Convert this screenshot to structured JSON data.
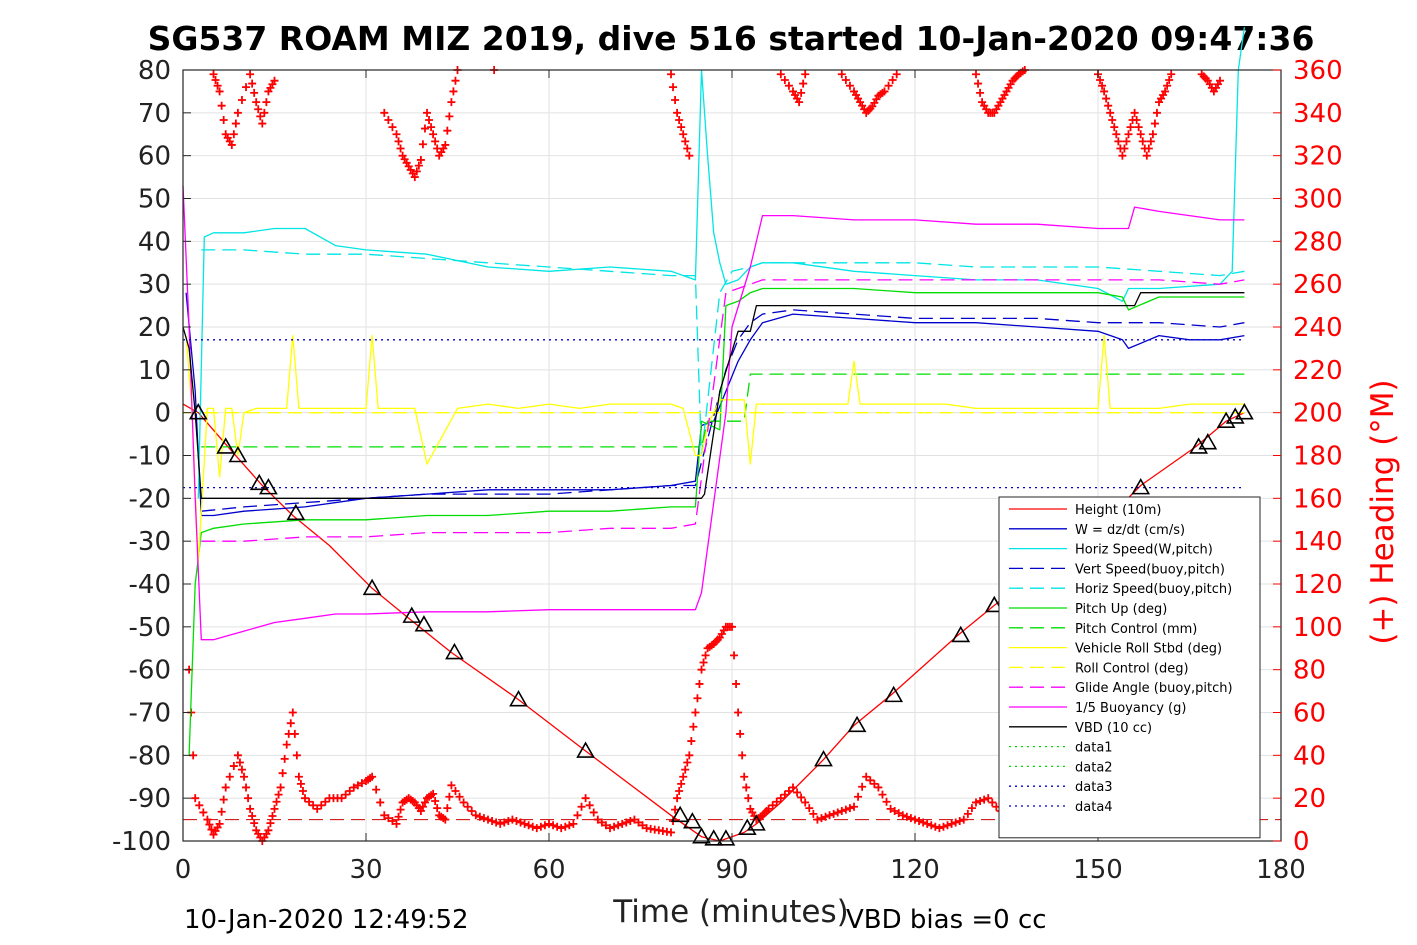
{
  "page": {
    "title": "SG537 ROAM MIZ 2019, dive 516 started 10-Jan-2020 09:47:36",
    "footer_left": "10-Jan-2020 12:49:52",
    "footer_right": "VBD bias =0 cc"
  },
  "chart_data": {
    "type": "line",
    "xlabel": "Time (minutes)",
    "ylabel_right": "(+) Heading (°M)",
    "xlim": [
      0,
      180
    ],
    "ylim": [
      -100,
      80
    ],
    "y2lim": [
      0,
      360
    ],
    "xticks": [
      0,
      30,
      60,
      90,
      120,
      150,
      180
    ],
    "yticks": [
      -100,
      -90,
      -80,
      -70,
      -60,
      -50,
      -40,
      -30,
      -20,
      -10,
      0,
      10,
      20,
      30,
      40,
      50,
      60,
      70,
      80
    ],
    "y2ticks": [
      0,
      20,
      40,
      60,
      80,
      100,
      120,
      140,
      160,
      180,
      200,
      220,
      240,
      260,
      280,
      300,
      320,
      340,
      360
    ],
    "grid": true,
    "legend_position": "bottom-right",
    "series": [
      {
        "name": "Height (10m)",
        "color": "#ff0000",
        "style": "solid",
        "x": [
          0,
          2.5,
          8,
          13,
          18,
          24,
          31,
          37,
          44,
          55,
          66,
          80,
          85,
          88,
          92,
          94,
          98,
          105,
          110,
          116,
          127,
          133,
          141,
          150,
          157,
          166,
          171,
          174
        ],
        "y": [
          2,
          0,
          -9,
          -17,
          -24,
          -31,
          -41,
          -48,
          -56,
          -67,
          -79,
          -94,
          -99,
          -100,
          -98,
          -96,
          -91,
          -81,
          -73,
          -66,
          -52,
          -45,
          -36,
          -27,
          -17,
          -8,
          -2,
          0
        ]
      },
      {
        "name": "W = dz/dt (cm/s)",
        "color": "#0000cc",
        "style": "solid",
        "x": [
          0.5,
          2,
          3,
          5,
          10,
          20,
          30,
          40,
          50,
          60,
          70,
          80,
          84,
          85,
          87,
          89,
          91,
          93,
          95,
          100,
          110,
          120,
          130,
          140,
          150,
          154,
          155,
          160,
          165,
          170,
          174
        ],
        "y": [
          28,
          5,
          -24,
          -24,
          -23,
          -22,
          -20,
          -19,
          -18,
          -18,
          -18,
          -17,
          -16,
          -3,
          -2,
          5,
          12,
          17,
          21,
          23,
          22,
          21,
          21,
          20,
          19,
          17,
          15,
          18,
          17,
          17,
          18
        ]
      },
      {
        "name": "Horiz Speed(W,pitch)",
        "color": "#00e5e5",
        "style": "solid",
        "x": [
          2.5,
          3.5,
          5,
          10,
          15,
          20,
          25,
          30,
          40,
          50,
          60,
          70,
          80,
          84,
          85,
          86,
          87,
          88,
          89,
          91,
          93,
          95,
          100,
          110,
          120,
          130,
          140,
          150,
          154,
          155,
          160,
          170,
          172,
          173,
          174
        ],
        "y": [
          -20,
          41,
          42,
          42,
          43,
          43,
          39,
          38,
          37,
          34,
          33,
          34,
          33,
          31,
          80,
          60,
          42,
          35,
          30,
          31,
          34,
          35,
          35,
          33,
          32,
          31,
          31,
          29,
          26,
          29,
          29,
          30,
          33,
          80,
          90
        ]
      },
      {
        "name": "Vert Speed(buoy,pitch)",
        "color": "#0000cc",
        "style": "dashed",
        "x": [
          3,
          10,
          20,
          30,
          40,
          50,
          60,
          70,
          80,
          84,
          89,
          91,
          93,
          95,
          100,
          110,
          120,
          130,
          140,
          150,
          160,
          170,
          174
        ],
        "y": [
          -23,
          -22,
          -21,
          -20,
          -19,
          -19,
          -19,
          -18,
          -17,
          -17,
          10,
          17,
          21,
          23,
          24,
          23,
          22,
          22,
          22,
          21,
          21,
          20,
          21
        ]
      },
      {
        "name": "Horiz Speed(buoy,pitch)",
        "color": "#00e5e5",
        "style": "dashed",
        "x": [
          3,
          5,
          10,
          20,
          30,
          40,
          50,
          60,
          70,
          80,
          84,
          85,
          88,
          90,
          93,
          95,
          100,
          110,
          120,
          130,
          140,
          150,
          160,
          170,
          174
        ],
        "y": [
          38,
          38,
          38,
          37,
          37,
          36,
          35,
          34,
          33,
          32,
          32,
          -10,
          28,
          33,
          34,
          35,
          35,
          35,
          35,
          34,
          34,
          34,
          33,
          32,
          33
        ]
      },
      {
        "name": "Pitch Up (deg)",
        "color": "#00dd00",
        "style": "solid",
        "x": [
          1,
          2,
          3,
          5,
          10,
          20,
          30,
          40,
          50,
          60,
          70,
          80,
          84,
          85,
          88,
          89,
          91,
          93,
          95,
          100,
          110,
          120,
          130,
          140,
          150,
          154,
          155,
          160,
          170,
          174
        ],
        "y": [
          -80,
          -40,
          -28,
          -27,
          -26,
          -25,
          -25,
          -24,
          -24,
          -23,
          -23,
          -22,
          -22,
          -2,
          -4,
          25,
          26,
          28,
          29,
          29,
          29,
          28,
          28,
          28,
          28,
          27,
          24,
          27,
          27,
          27
        ]
      },
      {
        "name": "Pitch Control (mm)",
        "color": "#00dd00",
        "style": "dashed",
        "x": [
          3,
          85,
          86,
          92,
          93,
          174
        ],
        "y": [
          -8,
          -8,
          -2,
          -2,
          9,
          9
        ]
      },
      {
        "name": "Vehicle Roll Stbd (deg)",
        "color": "#ffff00",
        "style": "solid",
        "x": [
          0.5,
          1.5,
          2.5,
          4,
          5,
          6,
          7,
          8,
          9,
          10,
          12,
          15,
          17,
          18,
          19,
          20,
          25,
          30,
          31,
          32,
          35,
          38,
          40,
          45,
          50,
          55,
          60,
          65,
          70,
          75,
          80,
          82,
          84,
          85,
          86,
          88,
          90,
          92,
          93,
          94,
          95,
          100,
          105,
          109,
          110,
          111,
          115,
          120,
          125,
          130,
          135,
          140,
          145,
          150,
          151,
          152,
          155,
          160,
          165,
          170,
          174
        ],
        "y": [
          18,
          0,
          -35,
          1,
          1,
          -15,
          1,
          1,
          -10,
          0,
          1,
          1,
          1,
          18,
          1,
          1,
          1,
          1,
          18,
          1,
          1,
          1,
          -12,
          1,
          2,
          1,
          2,
          1,
          2,
          2,
          2,
          1,
          -10,
          -10,
          -3,
          3,
          3,
          3,
          -12,
          2,
          2,
          2,
          2,
          2,
          12,
          2,
          2,
          2,
          2,
          1,
          1,
          1,
          1,
          1,
          18,
          1,
          1,
          1,
          2,
          2,
          2
        ]
      },
      {
        "name": "Roll Control (deg)",
        "color": "#ffff00",
        "style": "dashed",
        "x": [
          0,
          174
        ],
        "y": [
          0,
          0
        ]
      },
      {
        "name": "Glide Angle (buoy,pitch)",
        "color": "#ff00ff",
        "style": "dashed",
        "x": [
          3,
          10,
          20,
          30,
          40,
          50,
          60,
          70,
          80,
          84,
          89,
          91,
          93,
          95,
          100,
          110,
          120,
          130,
          140,
          150,
          160,
          170,
          174
        ],
        "y": [
          -30,
          -30,
          -29,
          -29,
          -28,
          -28,
          -28,
          -27,
          -27,
          -26,
          28,
          29,
          30,
          31,
          31,
          31,
          31,
          31,
          31,
          31,
          31,
          30,
          31
        ]
      },
      {
        "name": "1/5 Buoyancy (g)",
        "color": "#ff00ff",
        "style": "solid",
        "x": [
          0,
          1,
          2,
          3,
          5,
          10,
          15,
          20,
          25,
          30,
          40,
          50,
          60,
          70,
          80,
          84,
          85,
          89,
          90,
          93,
          95,
          100,
          110,
          120,
          130,
          140,
          150,
          155,
          156,
          160,
          170,
          174
        ],
        "y": [
          53,
          20,
          -20,
          -53,
          -53,
          -51,
          -49,
          -48,
          -47,
          -47,
          -46.5,
          -46.5,
          -46,
          -46,
          -46,
          -46,
          -42,
          0,
          20,
          34,
          46,
          46,
          45,
          45,
          44,
          44,
          43,
          43,
          48,
          47,
          45,
          45
        ]
      },
      {
        "name": "VBD (10 cc)",
        "color": "#000000",
        "style": "solid",
        "x": [
          0,
          1,
          2,
          3,
          85,
          85.5,
          88,
          91,
          91.5,
          93,
          94,
          95,
          155,
          156,
          157,
          174
        ],
        "y": [
          20,
          15,
          0,
          -20,
          -20,
          -19,
          5,
          19,
          19,
          19,
          25,
          25,
          25,
          25,
          28,
          28
        ]
      },
      {
        "name": "data1",
        "color": "#00dd00",
        "style": "dotted",
        "x": [],
        "y": []
      },
      {
        "name": "data2",
        "color": "#00dd00",
        "style": "dotted",
        "x": [],
        "y": []
      },
      {
        "name": "data3",
        "color": "#0000cc",
        "style": "dotted",
        "x": [
          0,
          174
        ],
        "y": [
          17,
          17
        ]
      },
      {
        "name": "data4",
        "color": "#0000cc",
        "style": "dotted",
        "x": [
          0,
          174
        ],
        "y": [
          -17.5,
          -17.5
        ]
      }
    ],
    "reference_lines": [
      {
        "color": "#cc0000",
        "style": "dashed",
        "y": -95
      }
    ],
    "heading_series": {
      "name": "Heading",
      "axis": "right",
      "color": "#ff0000",
      "marker": "+",
      "x": [
        1,
        2,
        4,
        5,
        6,
        7,
        9,
        10,
        11,
        12,
        13,
        14,
        15,
        16,
        17,
        18,
        19,
        20,
        22,
        24,
        26,
        28,
        30,
        31,
        33,
        35,
        36,
        37,
        38,
        39,
        40,
        41,
        42,
        43,
        44,
        46,
        48,
        50,
        52,
        54,
        56,
        58,
        60,
        62,
        64,
        66,
        68,
        70,
        72,
        74,
        76,
        78,
        80,
        81,
        82,
        83,
        84,
        85,
        86,
        87,
        88,
        89,
        90,
        91,
        92,
        93,
        94,
        95,
        96,
        98,
        100,
        102,
        104,
        106,
        108,
        110,
        112,
        114,
        116,
        118,
        120,
        122,
        124,
        126,
        128,
        130,
        132,
        134,
        136,
        138,
        140,
        142,
        144,
        146,
        148,
        150,
        152,
        154,
        156,
        158,
        160,
        162,
        164,
        166,
        168,
        170,
        172
      ],
      "y": [
        80,
        20,
        10,
        3,
        8,
        25,
        40,
        30,
        15,
        5,
        0,
        5,
        15,
        25,
        45,
        60,
        30,
        20,
        15,
        20,
        20,
        25,
        28,
        30,
        12,
        8,
        18,
        20,
        18,
        14,
        20,
        22,
        12,
        10,
        26,
        18,
        12,
        10,
        8,
        10,
        8,
        6,
        8,
        6,
        8,
        20,
        10,
        6,
        8,
        10,
        6,
        5,
        4,
        20,
        30,
        40,
        60,
        80,
        90,
        92,
        95,
        100,
        100,
        60,
        30,
        15,
        10,
        12,
        15,
        20,
        25,
        18,
        10,
        12,
        14,
        16,
        30,
        25,
        15,
        12,
        10,
        8,
        6,
        8,
        10,
        18,
        20,
        14,
        10,
        8,
        6,
        20,
        18,
        14,
        10,
        12,
        10,
        8,
        10,
        12,
        8,
        6,
        4,
        8,
        10,
        12,
        14
      ]
    },
    "heading_series_top": {
      "axis": "right",
      "color": "#ff0000",
      "marker": "+",
      "x": [
        5,
        6,
        7,
        8,
        9,
        11,
        12,
        13,
        14,
        15,
        33,
        35,
        36,
        37,
        38,
        39,
        40,
        41,
        42,
        43,
        44,
        45,
        51,
        80,
        81,
        82,
        83,
        98,
        100,
        101,
        102,
        108,
        110,
        111,
        112,
        113,
        114,
        115,
        117,
        130,
        131,
        132,
        133,
        134,
        135,
        136,
        137,
        138,
        150,
        151,
        152,
        153,
        154,
        155,
        156,
        157,
        158,
        159,
        160,
        161,
        162,
        167,
        168,
        169,
        170
      ],
      "y": [
        358,
        350,
        330,
        325,
        340,
        358,
        345,
        335,
        350,
        355,
        340,
        330,
        320,
        315,
        310,
        318,
        340,
        330,
        320,
        325,
        345,
        360,
        360,
        358,
        340,
        330,
        320,
        358,
        350,
        345,
        358,
        358,
        350,
        345,
        340,
        343,
        348,
        350,
        358,
        358,
        345,
        340,
        340,
        345,
        350,
        355,
        358,
        360,
        358,
        350,
        340,
        330,
        320,
        330,
        340,
        330,
        320,
        330,
        345,
        350,
        358,
        358,
        355,
        350,
        355
      ]
    },
    "depth_markers": {
      "color": "#000000",
      "marker": "triangle",
      "x": [
        2.5,
        7,
        9,
        12.5,
        14,
        18.5,
        31,
        37.5,
        39.5,
        44.5,
        55,
        66,
        81.5,
        83.5,
        85,
        87,
        89,
        92.5,
        94,
        105,
        110.5,
        116.5,
        127.5,
        133,
        157,
        166.5,
        168,
        171,
        172.5,
        174
      ],
      "y": [
        0,
        -8,
        -10,
        -16.5,
        -17.5,
        -23.5,
        -41,
        -47.5,
        -49.5,
        -56,
        -67,
        -79,
        -94,
        -95.5,
        -99,
        -99.5,
        -99.5,
        -97,
        -96,
        -81,
        -73,
        -66,
        -52,
        -45,
        -17.5,
        -8,
        -7,
        -2,
        -1,
        0
      ]
    }
  }
}
